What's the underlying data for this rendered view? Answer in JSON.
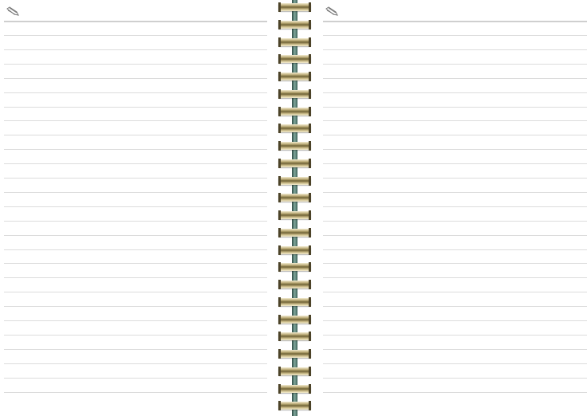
{
  "notebook": {
    "left_page": {
      "icon": "pencil-icon"
    },
    "right_page": {
      "icon": "pencil-icon"
    },
    "binding": "spiral",
    "colors": {
      "ring": "#b9a873",
      "spine": "#4f776d",
      "rule": "#dcdcdc"
    }
  }
}
